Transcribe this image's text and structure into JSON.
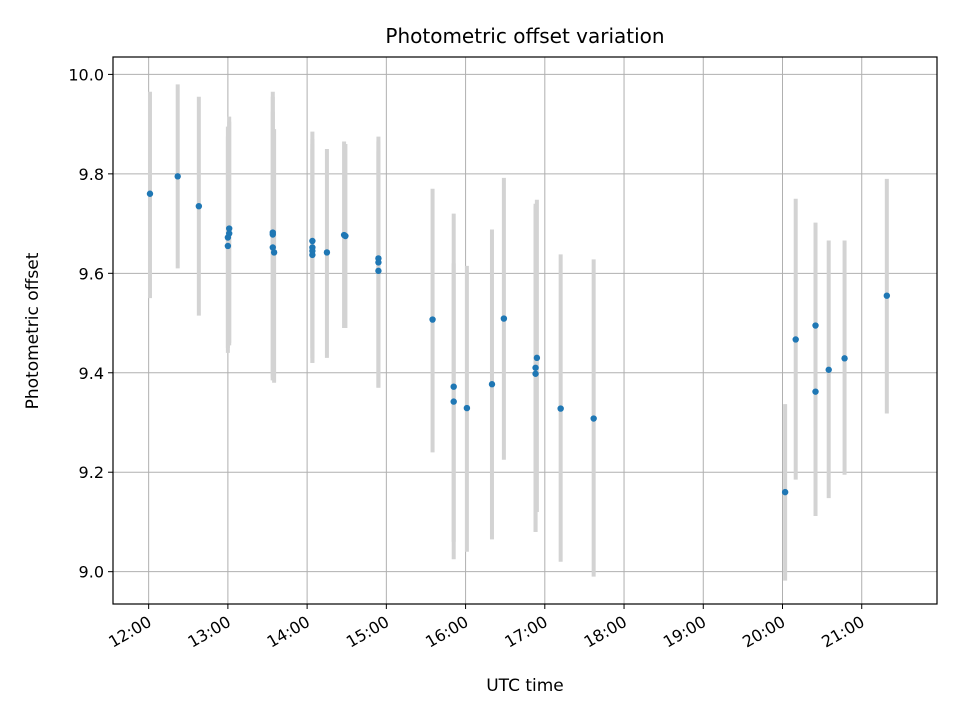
{
  "chart_data": {
    "type": "scatter",
    "title": "Photometric offset variation",
    "xlabel": "UTC time",
    "ylabel": "Photometric offset",
    "xlim": [
      "11:33",
      "21:57"
    ],
    "ylim": [
      8.935,
      10.035
    ],
    "grid": true,
    "x_ticks": [
      "12:00",
      "13:00",
      "14:00",
      "15:00",
      "16:00",
      "17:00",
      "18:00",
      "19:00",
      "20:00",
      "21:00"
    ],
    "y_ticks": [
      "9.0",
      "9.2",
      "9.4",
      "9.6",
      "9.8",
      "10.0"
    ],
    "colors": {
      "points": "#1f77b4",
      "error_bars": "#d3d3d3",
      "grid": "#b0b0b0"
    },
    "points": [
      {
        "x": "12:01",
        "y": 9.76,
        "lo": 9.55,
        "hi": 9.965
      },
      {
        "x": "12:22",
        "y": 9.795,
        "lo": 9.61,
        "hi": 9.98
      },
      {
        "x": "12:38",
        "y": 9.735,
        "lo": 9.515,
        "hi": 9.955
      },
      {
        "x": "13:01",
        "y": 9.69,
        "lo": 9.455,
        "hi": 9.915
      },
      {
        "x": "13:01",
        "y": 9.68,
        "lo": 9.46,
        "hi": 9.905
      },
      {
        "x": "13:00",
        "y": 9.672,
        "lo": 9.45,
        "hi": 9.895
      },
      {
        "x": "13:00",
        "y": 9.655,
        "lo": 9.44,
        "hi": 9.875
      },
      {
        "x": "13:34",
        "y": 9.682,
        "lo": 9.39,
        "hi": 9.965
      },
      {
        "x": "13:34",
        "y": 9.678,
        "lo": 9.385,
        "hi": 9.955
      },
      {
        "x": "13:34",
        "y": 9.652,
        "lo": 9.385,
        "hi": 9.925
      },
      {
        "x": "13:35",
        "y": 9.642,
        "lo": 9.38,
        "hi": 9.89
      },
      {
        "x": "14:04",
        "y": 9.665,
        "lo": 9.45,
        "hi": 9.885
      },
      {
        "x": "14:04",
        "y": 9.652,
        "lo": 9.43,
        "hi": 9.87
      },
      {
        "x": "14:04",
        "y": 9.645,
        "lo": 9.42,
        "hi": 9.86
      },
      {
        "x": "14:04",
        "y": 9.637,
        "lo": 9.42,
        "hi": 9.85
      },
      {
        "x": "14:15",
        "y": 9.642,
        "lo": 9.43,
        "hi": 9.85
      },
      {
        "x": "14:28",
        "y": 9.677,
        "lo": 9.49,
        "hi": 9.865
      },
      {
        "x": "14:29",
        "y": 9.675,
        "lo": 9.49,
        "hi": 9.86
      },
      {
        "x": "14:54",
        "y": 9.63,
        "lo": 9.37,
        "hi": 9.875
      },
      {
        "x": "14:54",
        "y": 9.622,
        "lo": 9.37,
        "hi": 9.865
      },
      {
        "x": "14:54",
        "y": 9.605,
        "lo": 9.37,
        "hi": 9.845
      },
      {
        "x": "15:35",
        "y": 9.507,
        "lo": 9.24,
        "hi": 9.77
      },
      {
        "x": "15:51",
        "y": 9.372,
        "lo": 9.06,
        "hi": 9.72
      },
      {
        "x": "15:51",
        "y": 9.342,
        "lo": 9.025,
        "hi": 9.62
      },
      {
        "x": "16:01",
        "y": 9.329,
        "lo": 9.04,
        "hi": 9.615
      },
      {
        "x": "16:20",
        "y": 9.377,
        "lo": 9.065,
        "hi": 9.688
      },
      {
        "x": "16:29",
        "y": 9.509,
        "lo": 9.225,
        "hi": 9.792
      },
      {
        "x": "16:54",
        "y": 9.43,
        "lo": 9.12,
        "hi": 9.748
      },
      {
        "x": "16:53",
        "y": 9.41,
        "lo": 9.08,
        "hi": 9.74
      },
      {
        "x": "16:53",
        "y": 9.398,
        "lo": 9.08,
        "hi": 9.735
      },
      {
        "x": "17:12",
        "y": 9.328,
        "lo": 9.02,
        "hi": 9.638
      },
      {
        "x": "17:37",
        "y": 9.308,
        "lo": 8.99,
        "hi": 9.628
      },
      {
        "x": "20:02",
        "y": 9.16,
        "lo": 8.982,
        "hi": 9.337
      },
      {
        "x": "20:10",
        "y": 9.467,
        "lo": 9.185,
        "hi": 9.75
      },
      {
        "x": "20:25",
        "y": 9.495,
        "lo": 9.29,
        "hi": 9.702
      },
      {
        "x": "20:25",
        "y": 9.362,
        "lo": 9.112,
        "hi": 9.612
      },
      {
        "x": "20:35",
        "y": 9.406,
        "lo": 9.148,
        "hi": 9.666
      },
      {
        "x": "20:47",
        "y": 9.429,
        "lo": 9.195,
        "hi": 9.666
      },
      {
        "x": "21:19",
        "y": 9.555,
        "lo": 9.318,
        "hi": 9.79
      }
    ]
  }
}
